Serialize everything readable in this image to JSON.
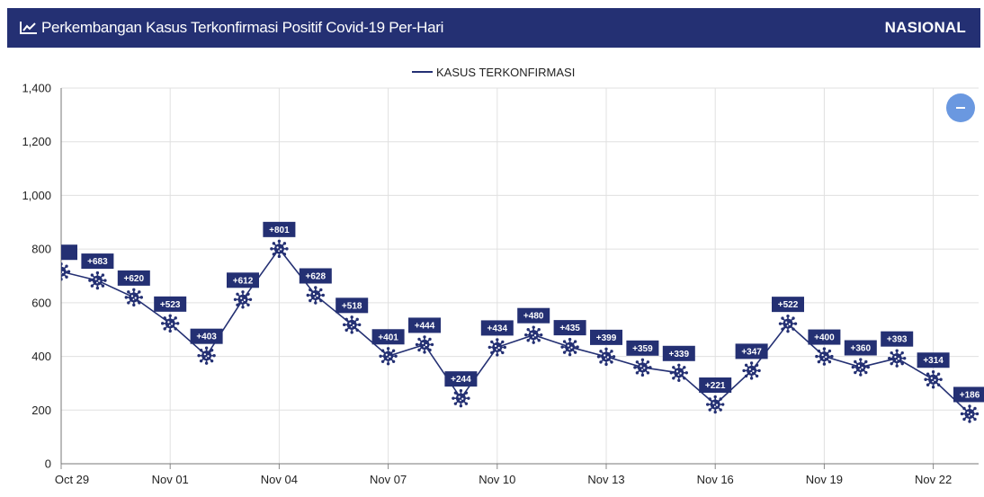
{
  "header": {
    "title": "Perkembangan Kasus Terkonfirmasi Positif Covid-19 Per-Hari",
    "region": "NASIONAL"
  },
  "colors": {
    "header_bg": "#243073",
    "series": "#243073",
    "grid": "#e0e0e0",
    "button": "#6a98e0"
  },
  "chart_data": {
    "type": "line",
    "series": [
      {
        "name": "KASUS TERKONFIRMASI",
        "labels": [
          "",
          "+683",
          "+620",
          "+523",
          "+403",
          "+612",
          "+801",
          "+628",
          "+518",
          "+401",
          "+444",
          "+244",
          "+434",
          "+480",
          "+435",
          "+399",
          "+359",
          "+339",
          "+221",
          "+347",
          "+522",
          "+400",
          "+360",
          "+393",
          "+314",
          "+186"
        ],
        "values": [
          716,
          683,
          620,
          523,
          403,
          612,
          801,
          628,
          518,
          401,
          444,
          244,
          434,
          480,
          435,
          399,
          359,
          339,
          221,
          347,
          522,
          400,
          360,
          393,
          314,
          186
        ]
      }
    ],
    "x_ticks": [
      "Oct 29",
      "Nov 01",
      "Nov 04",
      "Nov 07",
      "Nov 10",
      "Nov 13",
      "Nov 16",
      "Nov 19",
      "Nov 22"
    ],
    "x_tick_every": 3,
    "ylim": [
      0,
      1400
    ],
    "y_ticks": [
      "0",
      "200",
      "400",
      "600",
      "800",
      "1,000",
      "1,200",
      "1,400"
    ],
    "y_tick_values": [
      0,
      200,
      400,
      600,
      800,
      1000,
      1200,
      1400
    ],
    "grid": true,
    "legend_position": "top-center",
    "marker_icon": "virus-icon"
  }
}
